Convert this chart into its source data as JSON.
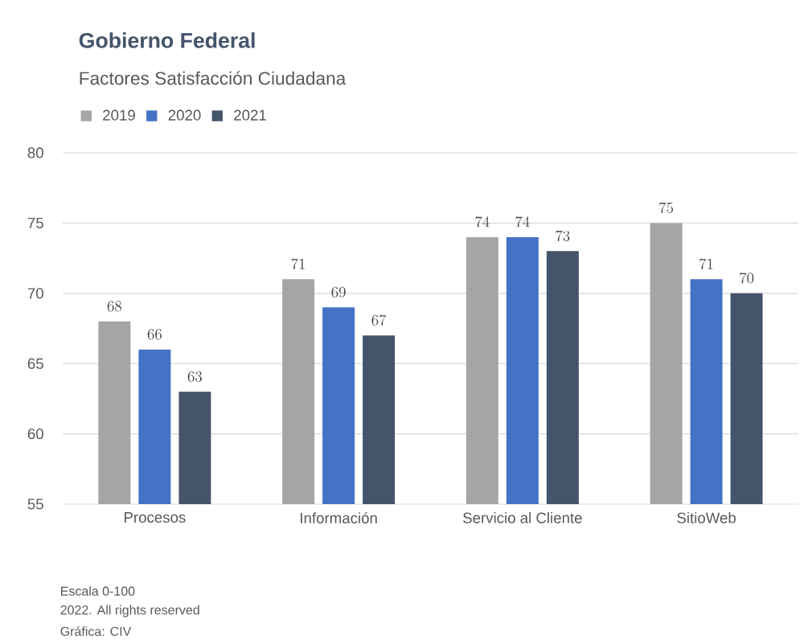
{
  "chart_data": {
    "type": "bar",
    "title": "Gobierno Federal",
    "subtitle": "Factores Satisfacción Ciudadana",
    "categories": [
      "Procesos",
      "Información",
      "Servicio al Cliente",
      "SitioWeb"
    ],
    "series": [
      {
        "name": "2019",
        "color": "#a5a5a5",
        "values": [
          68,
          71,
          74,
          75
        ]
      },
      {
        "name": "2020",
        "color": "#4472c4",
        "values": [
          66,
          69,
          74,
          71
        ]
      },
      {
        "name": "2021",
        "color": "#44546a",
        "values": [
          63,
          67,
          73,
          70
        ]
      }
    ],
    "ylim": [
      55,
      80
    ],
    "yticks": [
      55,
      60,
      65,
      70,
      75,
      80
    ],
    "grid": "y",
    "legend": "top left",
    "data_labels": true,
    "annotations": [
      "Escala 0-100",
      "2022. All rights reserved",
      "Gráfica: CIV"
    ]
  }
}
